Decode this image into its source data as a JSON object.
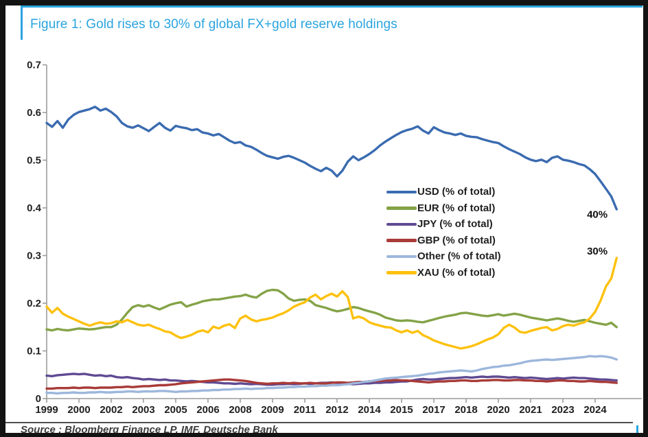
{
  "figure": {
    "title": "Figure 1: Gold rises to 30% of global FX+gold reserve holdings",
    "source": "Source : Bloomberg Finance LP, IMF, Deutsche Bank",
    "accent_color": "#2AA4DF"
  },
  "chart_data": {
    "type": "line",
    "title": "Figure 1: Gold rises to 30% of global FX+gold reserve holdings",
    "xlabel": "",
    "ylabel": "",
    "ylim": [
      0,
      0.7
    ],
    "grid": false,
    "legend_position": "center-right",
    "x_start": 1999.0,
    "x_step": 0.25,
    "x_tick_interval_years": 1.5,
    "x_tick_labels": [
      "1999",
      "2000",
      "2002",
      "2003",
      "2005",
      "2006",
      "2008",
      "2009",
      "2011",
      "2012",
      "2014",
      "2015",
      "2017",
      "2018",
      "2020",
      "2021",
      "2023",
      "2024"
    ],
    "y_tick_values": [
      0,
      0.1,
      0.2,
      0.3,
      0.4,
      0.5,
      0.6,
      0.7
    ],
    "y_tick_labels": [
      "0",
      "0.1",
      "0.2",
      "0.3",
      "0.4",
      "0.5",
      "0.6",
      "0.7"
    ],
    "annotations": [
      {
        "text": "40%",
        "x": 2024.6,
        "y": 0.386
      },
      {
        "text": "30%",
        "x": 2024.6,
        "y": 0.309
      }
    ],
    "series": [
      {
        "name": "USD",
        "label": "USD (% of total)",
        "color": "#3A6BB0",
        "values": [
          0.578,
          0.57,
          0.582,
          0.568,
          0.585,
          0.595,
          0.601,
          0.604,
          0.607,
          0.612,
          0.604,
          0.608,
          0.601,
          0.592,
          0.578,
          0.571,
          0.568,
          0.573,
          0.567,
          0.561,
          0.57,
          0.578,
          0.568,
          0.562,
          0.572,
          0.569,
          0.567,
          0.563,
          0.565,
          0.558,
          0.556,
          0.552,
          0.555,
          0.548,
          0.541,
          0.536,
          0.538,
          0.531,
          0.528,
          0.522,
          0.515,
          0.509,
          0.506,
          0.503,
          0.507,
          0.509,
          0.505,
          0.5,
          0.495,
          0.488,
          0.482,
          0.477,
          0.484,
          0.478,
          0.466,
          0.478,
          0.497,
          0.508,
          0.5,
          0.506,
          0.513,
          0.521,
          0.531,
          0.539,
          0.546,
          0.553,
          0.559,
          0.563,
          0.566,
          0.571,
          0.562,
          0.556,
          0.569,
          0.563,
          0.558,
          0.556,
          0.553,
          0.556,
          0.551,
          0.549,
          0.548,
          0.544,
          0.541,
          0.538,
          0.536,
          0.529,
          0.523,
          0.518,
          0.513,
          0.506,
          0.501,
          0.498,
          0.501,
          0.496,
          0.505,
          0.508,
          0.501,
          0.499,
          0.496,
          0.492,
          0.489,
          0.481,
          0.471,
          0.456,
          0.44,
          0.424,
          0.397
        ]
      },
      {
        "name": "EUR",
        "label": "EUR (% of total)",
        "color": "#84A347",
        "values": [
          0.145,
          0.143,
          0.146,
          0.144,
          0.143,
          0.145,
          0.147,
          0.146,
          0.145,
          0.146,
          0.148,
          0.15,
          0.15,
          0.155,
          0.166,
          0.18,
          0.192,
          0.196,
          0.193,
          0.196,
          0.191,
          0.187,
          0.192,
          0.197,
          0.2,
          0.202,
          0.193,
          0.197,
          0.2,
          0.204,
          0.206,
          0.208,
          0.208,
          0.21,
          0.212,
          0.214,
          0.215,
          0.218,
          0.214,
          0.212,
          0.22,
          0.226,
          0.228,
          0.227,
          0.22,
          0.21,
          0.205,
          0.207,
          0.208,
          0.205,
          0.196,
          0.193,
          0.19,
          0.186,
          0.183,
          0.185,
          0.188,
          0.192,
          0.19,
          0.186,
          0.183,
          0.18,
          0.176,
          0.17,
          0.167,
          0.164,
          0.163,
          0.164,
          0.163,
          0.161,
          0.16,
          0.163,
          0.166,
          0.169,
          0.172,
          0.174,
          0.176,
          0.179,
          0.18,
          0.178,
          0.176,
          0.174,
          0.173,
          0.175,
          0.177,
          0.174,
          0.176,
          0.178,
          0.176,
          0.173,
          0.17,
          0.168,
          0.166,
          0.164,
          0.166,
          0.168,
          0.166,
          0.163,
          0.161,
          0.163,
          0.165,
          0.162,
          0.159,
          0.157,
          0.155,
          0.159,
          0.15
        ]
      },
      {
        "name": "JPY",
        "label": "JPY (% of total)",
        "color": "#5F4A92",
        "values": [
          0.048,
          0.047,
          0.049,
          0.05,
          0.051,
          0.052,
          0.051,
          0.052,
          0.05,
          0.048,
          0.049,
          0.047,
          0.048,
          0.045,
          0.044,
          0.045,
          0.043,
          0.042,
          0.04,
          0.041,
          0.04,
          0.039,
          0.04,
          0.038,
          0.038,
          0.037,
          0.036,
          0.037,
          0.036,
          0.035,
          0.034,
          0.034,
          0.033,
          0.032,
          0.032,
          0.031,
          0.032,
          0.031,
          0.03,
          0.031,
          0.03,
          0.029,
          0.029,
          0.03,
          0.03,
          0.031,
          0.03,
          0.031,
          0.032,
          0.031,
          0.032,
          0.033,
          0.033,
          0.034,
          0.033,
          0.032,
          0.031,
          0.03,
          0.031,
          0.032,
          0.032,
          0.033,
          0.033,
          0.034,
          0.034,
          0.035,
          0.036,
          0.036,
          0.038,
          0.04,
          0.041,
          0.04,
          0.04,
          0.041,
          0.042,
          0.043,
          0.043,
          0.044,
          0.045,
          0.044,
          0.045,
          0.046,
          0.045,
          0.046,
          0.046,
          0.045,
          0.044,
          0.045,
          0.044,
          0.043,
          0.044,
          0.043,
          0.042,
          0.041,
          0.042,
          0.043,
          0.042,
          0.043,
          0.044,
          0.043,
          0.043,
          0.042,
          0.041,
          0.04,
          0.04,
          0.039,
          0.038
        ]
      },
      {
        "name": "GBP",
        "label": "GBP (% of total)",
        "color": "#A93B38",
        "values": [
          0.021,
          0.021,
          0.022,
          0.022,
          0.022,
          0.023,
          0.022,
          0.023,
          0.023,
          0.022,
          0.023,
          0.023,
          0.023,
          0.024,
          0.024,
          0.025,
          0.024,
          0.025,
          0.026,
          0.026,
          0.027,
          0.028,
          0.028,
          0.029,
          0.03,
          0.032,
          0.033,
          0.034,
          0.035,
          0.036,
          0.037,
          0.038,
          0.039,
          0.04,
          0.04,
          0.039,
          0.038,
          0.037,
          0.035,
          0.033,
          0.032,
          0.031,
          0.032,
          0.032,
          0.033,
          0.032,
          0.033,
          0.032,
          0.032,
          0.033,
          0.032,
          0.032,
          0.032,
          0.033,
          0.034,
          0.034,
          0.033,
          0.034,
          0.035,
          0.035,
          0.036,
          0.037,
          0.037,
          0.038,
          0.038,
          0.039,
          0.038,
          0.038,
          0.037,
          0.036,
          0.035,
          0.034,
          0.035,
          0.036,
          0.036,
          0.037,
          0.037,
          0.038,
          0.038,
          0.037,
          0.037,
          0.038,
          0.038,
          0.039,
          0.039,
          0.038,
          0.038,
          0.039,
          0.039,
          0.038,
          0.038,
          0.037,
          0.037,
          0.036,
          0.037,
          0.038,
          0.038,
          0.037,
          0.037,
          0.036,
          0.036,
          0.037,
          0.036,
          0.035,
          0.035,
          0.034,
          0.033
        ]
      },
      {
        "name": "Other",
        "label": "Other (% of total)",
        "color": "#9DB7DC",
        "values": [
          0.012,
          0.012,
          0.011,
          0.012,
          0.012,
          0.013,
          0.012,
          0.012,
          0.013,
          0.013,
          0.014,
          0.013,
          0.013,
          0.014,
          0.014,
          0.015,
          0.015,
          0.014,
          0.015,
          0.015,
          0.015,
          0.016,
          0.016,
          0.015,
          0.014,
          0.015,
          0.015,
          0.016,
          0.016,
          0.017,
          0.017,
          0.018,
          0.018,
          0.019,
          0.019,
          0.02,
          0.02,
          0.021,
          0.02,
          0.021,
          0.021,
          0.022,
          0.022,
          0.023,
          0.023,
          0.024,
          0.024,
          0.025,
          0.025,
          0.026,
          0.026,
          0.027,
          0.027,
          0.028,
          0.028,
          0.029,
          0.03,
          0.032,
          0.033,
          0.035,
          0.036,
          0.038,
          0.04,
          0.042,
          0.043,
          0.044,
          0.045,
          0.046,
          0.047,
          0.048,
          0.05,
          0.052,
          0.053,
          0.055,
          0.056,
          0.057,
          0.058,
          0.059,
          0.058,
          0.057,
          0.059,
          0.062,
          0.064,
          0.066,
          0.067,
          0.069,
          0.07,
          0.072,
          0.074,
          0.077,
          0.079,
          0.08,
          0.081,
          0.082,
          0.081,
          0.082,
          0.083,
          0.084,
          0.085,
          0.086,
          0.087,
          0.089,
          0.088,
          0.089,
          0.088,
          0.086,
          0.082
        ]
      },
      {
        "name": "XAU",
        "label": "XAU (% of total)",
        "color": "#FDC10D",
        "values": [
          0.193,
          0.18,
          0.19,
          0.178,
          0.172,
          0.167,
          0.162,
          0.157,
          0.153,
          0.157,
          0.16,
          0.157,
          0.158,
          0.162,
          0.16,
          0.165,
          0.16,
          0.155,
          0.153,
          0.155,
          0.15,
          0.146,
          0.141,
          0.139,
          0.132,
          0.127,
          0.13,
          0.134,
          0.14,
          0.143,
          0.139,
          0.151,
          0.147,
          0.153,
          0.156,
          0.148,
          0.168,
          0.174,
          0.166,
          0.162,
          0.165,
          0.167,
          0.17,
          0.175,
          0.179,
          0.185,
          0.193,
          0.198,
          0.202,
          0.212,
          0.218,
          0.208,
          0.215,
          0.22,
          0.214,
          0.225,
          0.213,
          0.168,
          0.172,
          0.168,
          0.16,
          0.156,
          0.153,
          0.15,
          0.149,
          0.143,
          0.139,
          0.143,
          0.138,
          0.142,
          0.133,
          0.128,
          0.122,
          0.118,
          0.114,
          0.111,
          0.108,
          0.105,
          0.107,
          0.11,
          0.114,
          0.119,
          0.124,
          0.128,
          0.135,
          0.148,
          0.155,
          0.149,
          0.14,
          0.138,
          0.142,
          0.145,
          0.148,
          0.15,
          0.143,
          0.146,
          0.152,
          0.155,
          0.153,
          0.157,
          0.16,
          0.168,
          0.182,
          0.205,
          0.235,
          0.252,
          0.295
        ]
      }
    ]
  }
}
